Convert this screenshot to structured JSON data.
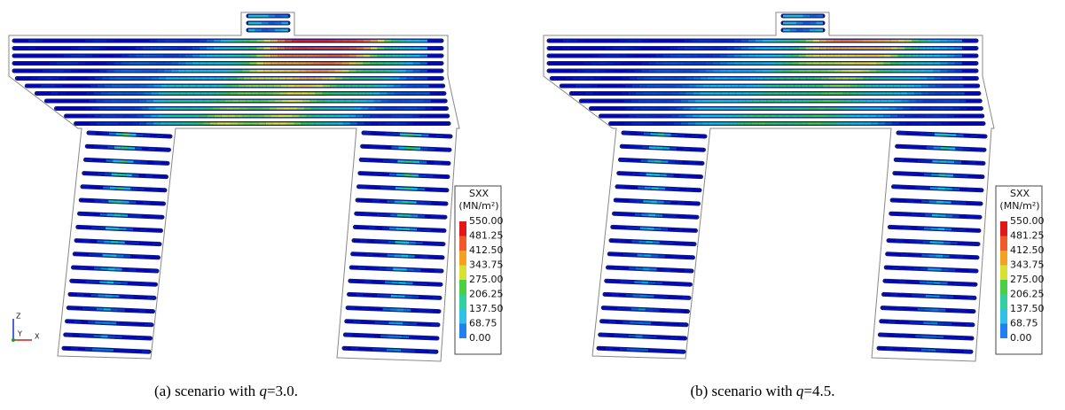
{
  "panels": [
    {
      "legend": {
        "title": "SXX",
        "unit": "(MN/m²)",
        "labels": [
          "550.00",
          "481.25",
          "412.50",
          "343.75",
          "275.00",
          "206.25",
          "137.50",
          "68.75",
          "0.00"
        ]
      },
      "caption": {
        "prefix": "(a) scenario with ",
        "variable": "q",
        "suffix": "=3.0."
      },
      "axes_triad": [
        "Z",
        "Y",
        "X"
      ]
    },
    {
      "legend": {
        "title": "SXX",
        "unit": "(MN/m²)",
        "labels": [
          "550.00",
          "481.25",
          "412.50",
          "343.75",
          "275.00",
          "206.25",
          "137.50",
          "68.75",
          "0.00"
        ]
      },
      "caption": {
        "prefix": "(b) scenario with ",
        "variable": "q",
        "suffix": "=4.5."
      }
    }
  ]
}
